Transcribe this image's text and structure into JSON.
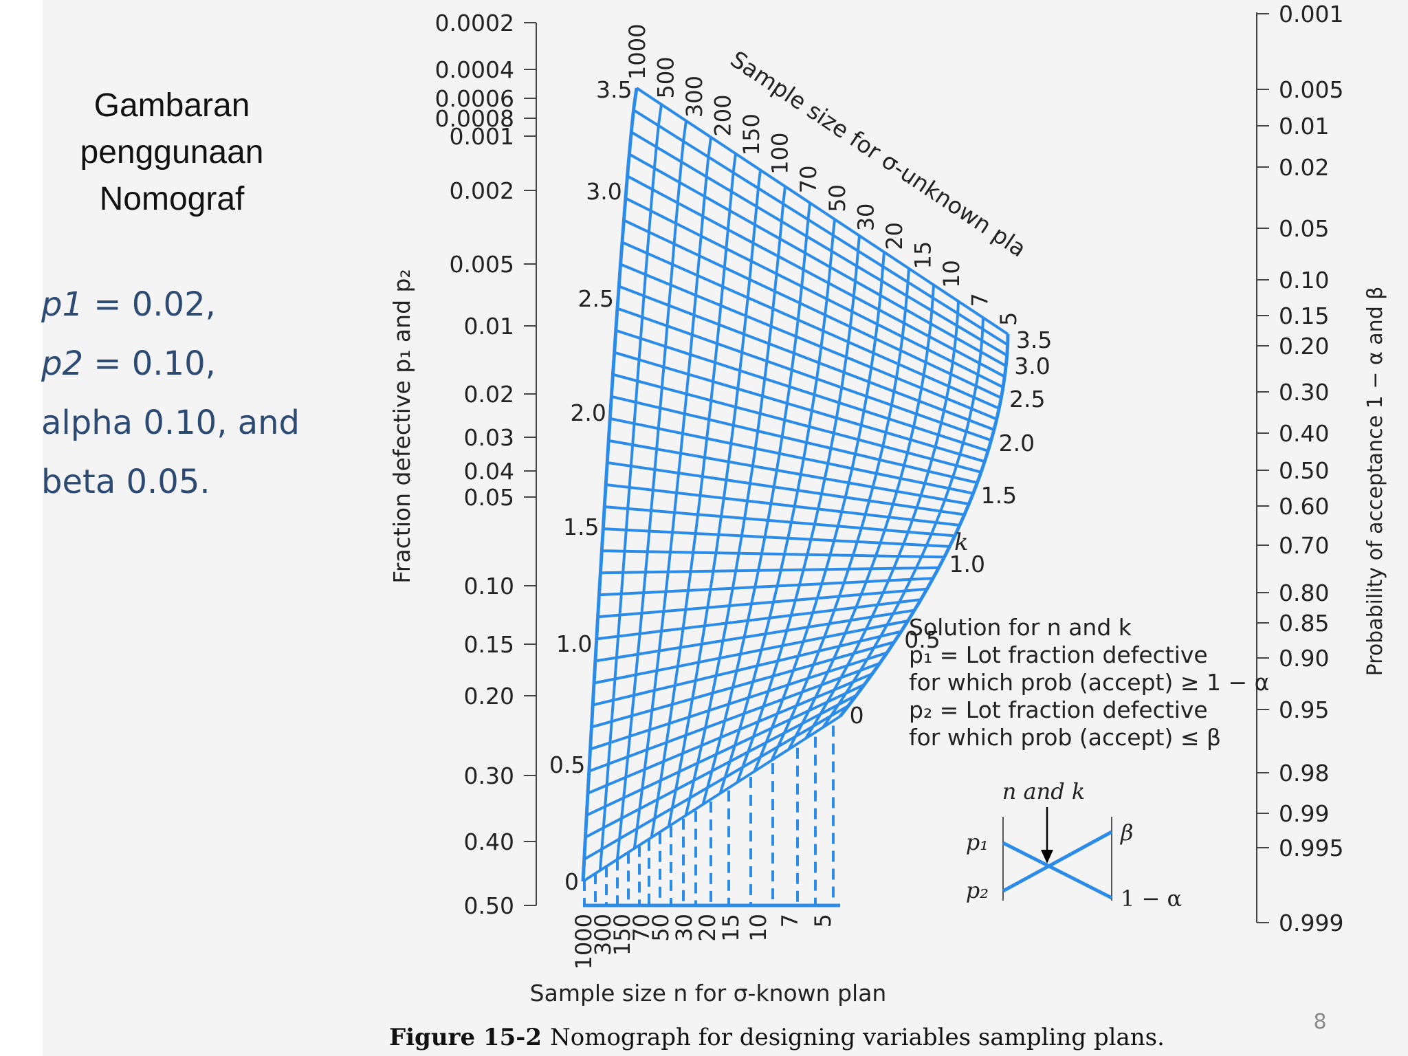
{
  "side": {
    "title_lines": [
      "Gambaran",
      "penggunaan",
      "Nomograf"
    ],
    "params": [
      {
        "var": "p1",
        "rest": " = 0.02,"
      },
      {
        "var": "p2",
        "rest": " = 0.10,"
      },
      {
        "var": "",
        "rest": "alpha 0.10, and"
      },
      {
        "var": "",
        "rest": "beta 0.05."
      }
    ]
  },
  "left_axis": {
    "label": "Fraction defective p₁ and p₂",
    "ticks": [
      "0.0002",
      "0.0004",
      "0.0006",
      "0.0008",
      "0.001",
      "0.002",
      "0.005",
      "0.01",
      "0.02",
      "0.03",
      "0.04",
      "0.05",
      "0.10",
      "0.15",
      "0.20",
      "0.30",
      "0.40",
      "0.50"
    ]
  },
  "right_axis": {
    "label": "Probability of acceptance 1 − α and β",
    "ticks": [
      "0.001",
      "0.005",
      "0.01",
      "0.02",
      "0.05",
      "0.10",
      "0.15",
      "0.20",
      "0.30",
      "0.40",
      "0.50",
      "0.60",
      "0.70",
      "0.80",
      "0.85",
      "0.90",
      "0.95",
      "0.98",
      "0.99",
      "0.995",
      "0.999"
    ]
  },
  "grid": {
    "color": "#2b8be8",
    "left_k_labels": [
      "3.5",
      "3.0",
      "2.5",
      "2.0",
      "1.5",
      "1.0",
      "0.5",
      "0"
    ],
    "right_k_labels": [
      "3.5",
      "3.0",
      "2.5",
      "2.0",
      "1.5",
      "1.0",
      "0.5",
      "0"
    ],
    "k_symbol": "k",
    "top_n_labels": [
      "1000",
      "500",
      "300",
      "200",
      "150",
      "100",
      "70",
      "50",
      "30",
      "20",
      "15",
      "10",
      "7",
      "5"
    ],
    "top_title": "Sample size for σ-unknown plan",
    "bottom_n_labels": [
      "1000",
      "300",
      "150",
      "70",
      "50",
      "30",
      "20",
      "15",
      "10",
      "7",
      "5"
    ],
    "bottom_title": "Sample size n for σ-known plan"
  },
  "solution": {
    "lines": [
      "Solution for n and k",
      "p₁ = Lot fraction defective",
      "for which prob (accept) ≥ 1 − α",
      "p₂ = Lot fraction defective",
      "for which prob (accept) ≤ β"
    ]
  },
  "key": {
    "top_label": "n and k",
    "p1": "p₁",
    "p2": "p₂",
    "beta": "β",
    "one_minus_alpha": "1 − α"
  },
  "caption": {
    "figure": "Figure 15-2",
    "text": "Nomograph for designing variables sampling plans."
  },
  "page_number": "8"
}
